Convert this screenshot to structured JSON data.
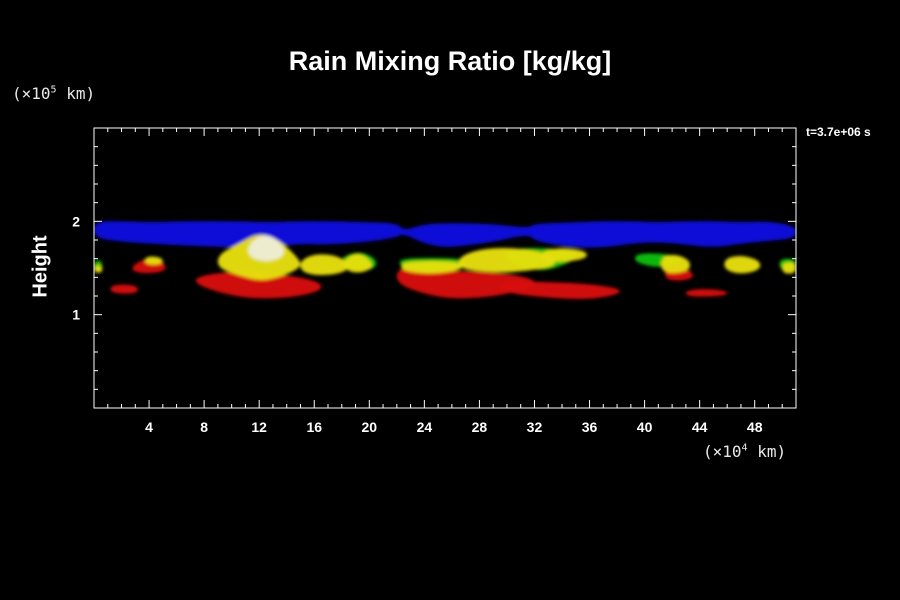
{
  "chart_data": {
    "type": "heatmap",
    "title": "Rain Mixing Ratio [kg/kg]",
    "ylabel": "Height",
    "y_unit": {
      "prefix": "(×10",
      "exp": "5",
      "suffix": " km)"
    },
    "x_unit": {
      "prefix": "(×10",
      "exp": "4",
      "suffix": " km)"
    },
    "time_label": "t=3.7e+06 s",
    "xlim": [
      0,
      51
    ],
    "ylim": [
      0,
      3
    ],
    "x_ticks": [
      4,
      8,
      12,
      16,
      20,
      24,
      28,
      32,
      36,
      40,
      44,
      48
    ],
    "y_ticks": [
      1,
      2
    ],
    "x_minor_step": 1,
    "y_minor_step": 0.2,
    "grid": false,
    "colors": {
      "blue": "#1010e0",
      "green": "#10c010",
      "yellow": "#e8e010",
      "red": "#d80808",
      "white": "#f0f0f0"
    },
    "regions": [
      {
        "level": "blue",
        "x": [
          0,
          2.2,
          4,
          7,
          10,
          13,
          15,
          17,
          20,
          22,
          22.5,
          24,
          25.5,
          27,
          29,
          31.5,
          32,
          33,
          35,
          37,
          39,
          41,
          43,
          45,
          47,
          49,
          51
        ],
        "y_top": [
          2.0,
          2.0,
          1.99,
          2.0,
          2.0,
          1.99,
          2.0,
          2.0,
          1.99,
          1.98,
          1.9,
          1.97,
          1.98,
          1.98,
          1.97,
          1.93,
          1.97,
          1.98,
          1.99,
          2.0,
          2.0,
          1.99,
          2.0,
          2.0,
          1.99,
          2.0,
          1.95
        ],
        "y_bot": [
          1.82,
          1.78,
          1.76,
          1.74,
          1.72,
          1.73,
          1.76,
          1.75,
          1.78,
          1.83,
          1.87,
          1.76,
          1.72,
          1.74,
          1.78,
          1.86,
          1.8,
          1.76,
          1.72,
          1.72,
          1.76,
          1.78,
          1.75,
          1.72,
          1.76,
          1.79,
          1.82
        ]
      },
      {
        "level": "red",
        "x": [
          1.2,
          2.3,
          3.2
        ],
        "y_top": [
          1.31,
          1.33,
          1.3
        ],
        "y_bot": [
          1.24,
          1.22,
          1.24
        ]
      },
      {
        "level": "red",
        "x": [
          2.8,
          4,
          5.2
        ],
        "y_top": [
          1.53,
          1.62,
          1.55
        ],
        "y_bot": [
          1.46,
          1.44,
          1.47
        ]
      },
      {
        "level": "red",
        "x": [
          7.4,
          9,
          11,
          13,
          15,
          16.5
        ],
        "y_top": [
          1.4,
          1.45,
          1.46,
          1.44,
          1.4,
          1.34
        ],
        "y_bot": [
          1.33,
          1.24,
          1.18,
          1.17,
          1.2,
          1.26
        ]
      },
      {
        "level": "red",
        "x": [
          22,
          24,
          26,
          28,
          30,
          32
        ],
        "y_top": [
          1.5,
          1.48,
          1.47,
          1.46,
          1.44,
          1.38
        ],
        "y_bot": [
          1.33,
          1.22,
          1.17,
          1.18,
          1.22,
          1.3
        ]
      },
      {
        "level": "red",
        "x": [
          29.5,
          33,
          36,
          38.2
        ],
        "y_top": [
          1.36,
          1.35,
          1.33,
          1.28
        ],
        "y_bot": [
          1.24,
          1.18,
          1.16,
          1.22
        ]
      },
      {
        "level": "red",
        "x": [
          41.5,
          42.5,
          43.5
        ],
        "y_top": [
          1.48,
          1.5,
          1.46
        ],
        "y_bot": [
          1.38,
          1.36,
          1.39
        ]
      },
      {
        "level": "red",
        "x": [
          43,
          44.5,
          46
        ],
        "y_top": [
          1.26,
          1.28,
          1.25
        ],
        "y_bot": [
          1.2,
          1.19,
          1.21
        ]
      },
      {
        "level": "green",
        "x": [
          0,
          0.6
        ],
        "y_top": [
          1.58,
          1.58
        ],
        "y_bot": [
          1.46,
          1.46
        ]
      },
      {
        "level": "green",
        "x": [
          18,
          19.3,
          20.5
        ],
        "y_top": [
          1.62,
          1.68,
          1.6
        ],
        "y_bot": [
          1.52,
          1.46,
          1.5
        ]
      },
      {
        "level": "green",
        "x": [
          22.2,
          24.5,
          27
        ],
        "y_top": [
          1.6,
          1.61,
          1.6
        ],
        "y_bot": [
          1.52,
          1.45,
          1.5
        ]
      },
      {
        "level": "green",
        "x": [
          30,
          32.5,
          35
        ],
        "y_top": [
          1.7,
          1.72,
          1.68
        ],
        "y_bot": [
          1.56,
          1.45,
          1.58
        ]
      },
      {
        "level": "green",
        "x": [
          39.3,
          41,
          42.6
        ],
        "y_top": [
          1.65,
          1.66,
          1.62
        ],
        "y_bot": [
          1.56,
          1.5,
          1.56
        ]
      },
      {
        "level": "green",
        "x": [
          49.8,
          51
        ],
        "y_top": [
          1.6,
          1.6
        ],
        "y_bot": [
          1.48,
          1.48
        ]
      },
      {
        "level": "yellow",
        "x": [
          0,
          0.6
        ],
        "y_top": [
          1.53,
          1.52
        ],
        "y_bot": [
          1.45,
          1.45
        ]
      },
      {
        "level": "yellow",
        "x": [
          3.7,
          4.3,
          5
        ],
        "y_top": [
          1.61,
          1.63,
          1.6
        ],
        "y_bot": [
          1.55,
          1.53,
          1.55
        ]
      },
      {
        "level": "yellow",
        "x": [
          9,
          10.5,
          12,
          13.5,
          15
        ],
        "y_top": [
          1.64,
          1.76,
          1.88,
          1.8,
          1.58
        ],
        "y_bot": [
          1.5,
          1.42,
          1.36,
          1.4,
          1.5
        ]
      },
      {
        "level": "yellow",
        "x": [
          15,
          16,
          17.5,
          18.5
        ],
        "y_top": [
          1.58,
          1.65,
          1.64,
          1.56
        ],
        "y_bot": [
          1.47,
          1.42,
          1.43,
          1.48
        ]
      },
      {
        "level": "yellow",
        "x": [
          18.2,
          19.2,
          20.2
        ],
        "y_top": [
          1.6,
          1.67,
          1.57
        ],
        "y_bot": [
          1.48,
          1.44,
          1.49
        ]
      },
      {
        "level": "yellow",
        "x": [
          22.3,
          24.5,
          26.8
        ],
        "y_top": [
          1.56,
          1.58,
          1.56
        ],
        "y_bot": [
          1.47,
          1.43,
          1.48
        ]
      },
      {
        "level": "yellow",
        "x": [
          26.5,
          28,
          30,
          32,
          33.5
        ],
        "y_top": [
          1.62,
          1.7,
          1.72,
          1.69,
          1.62
        ],
        "y_bot": [
          1.5,
          1.46,
          1.45,
          1.48,
          1.52
        ]
      },
      {
        "level": "yellow",
        "x": [
          32.5,
          34,
          35.8
        ],
        "y_top": [
          1.68,
          1.72,
          1.68
        ],
        "y_bot": [
          1.58,
          1.56,
          1.6
        ]
      },
      {
        "level": "yellow",
        "x": [
          41.2,
          42.3,
          43.3
        ],
        "y_top": [
          1.62,
          1.65,
          1.58
        ],
        "y_bot": [
          1.46,
          1.44,
          1.48
        ]
      },
      {
        "level": "yellow",
        "x": [
          45.8,
          47,
          48.4
        ],
        "y_top": [
          1.6,
          1.64,
          1.58
        ],
        "y_bot": [
          1.48,
          1.43,
          1.48
        ]
      },
      {
        "level": "yellow",
        "x": [
          50,
          51
        ],
        "y_top": [
          1.56,
          1.56
        ],
        "y_bot": [
          1.44,
          1.44
        ]
      },
      {
        "level": "white",
        "x": [
          11.2,
          12.5,
          13.8
        ],
        "y_top": [
          1.76,
          1.88,
          1.74
        ],
        "y_bot": [
          1.62,
          1.56,
          1.62
        ]
      }
    ]
  }
}
